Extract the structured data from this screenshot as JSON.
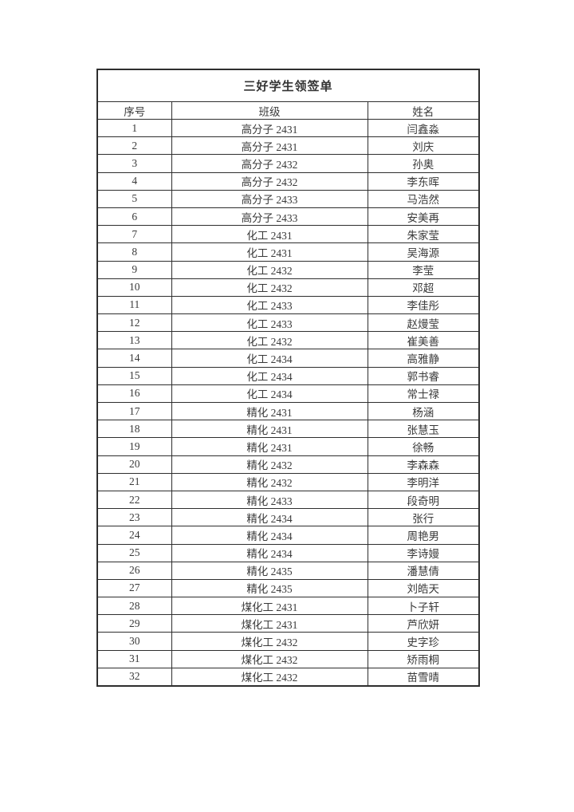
{
  "document": {
    "title": "三好学生领签单"
  },
  "table": {
    "headers": [
      "序号",
      "班级",
      "姓名"
    ],
    "rows": [
      [
        "1",
        "高分子 2431",
        "闫鑫淼"
      ],
      [
        "2",
        "高分子 2431",
        "刘庆"
      ],
      [
        "3",
        "高分子 2432",
        "孙奥"
      ],
      [
        "4",
        "高分子 2432",
        "李东晖"
      ],
      [
        "5",
        "高分子 2433",
        "马浩然"
      ],
      [
        "6",
        "高分子 2433",
        "安美再"
      ],
      [
        "7",
        "化工 2431",
        "朱家莹"
      ],
      [
        "8",
        "化工 2431",
        "吴海源"
      ],
      [
        "9",
        "化工 2432",
        "李莹"
      ],
      [
        "10",
        "化工 2432",
        "邓超"
      ],
      [
        "11",
        "化工 2433",
        "李佳彤"
      ],
      [
        "12",
        "化工 2433",
        "赵熳莹"
      ],
      [
        "13",
        "化工 2432",
        "崔美善"
      ],
      [
        "14",
        "化工 2434",
        "高雅静"
      ],
      [
        "15",
        "化工 2434",
        "郭书睿"
      ],
      [
        "16",
        "化工 2434",
        "常士禄"
      ],
      [
        "17",
        "精化 2431",
        "杨涵"
      ],
      [
        "18",
        "精化 2431",
        "张慧玉"
      ],
      [
        "19",
        "精化 2431",
        "徐畅"
      ],
      [
        "20",
        "精化 2432",
        "李森森"
      ],
      [
        "21",
        "精化 2432",
        "李明洋"
      ],
      [
        "22",
        "精化 2433",
        "段奇明"
      ],
      [
        "23",
        "精化 2434",
        "张行"
      ],
      [
        "24",
        "精化 2434",
        "周艳男"
      ],
      [
        "25",
        "精化 2434",
        "李诗嫚"
      ],
      [
        "26",
        "精化 2435",
        "潘慧倩"
      ],
      [
        "27",
        "精化 2435",
        "刘皓天"
      ],
      [
        "28",
        "煤化工 2431",
        "卜子轩"
      ],
      [
        "29",
        "煤化工 2431",
        "芦欣妍"
      ],
      [
        "30",
        "煤化工 2432",
        "史字珍"
      ],
      [
        "31",
        "煤化工 2432",
        "矫雨桐"
      ],
      [
        "32",
        "煤化工 2432",
        "苗雪晴"
      ]
    ]
  }
}
